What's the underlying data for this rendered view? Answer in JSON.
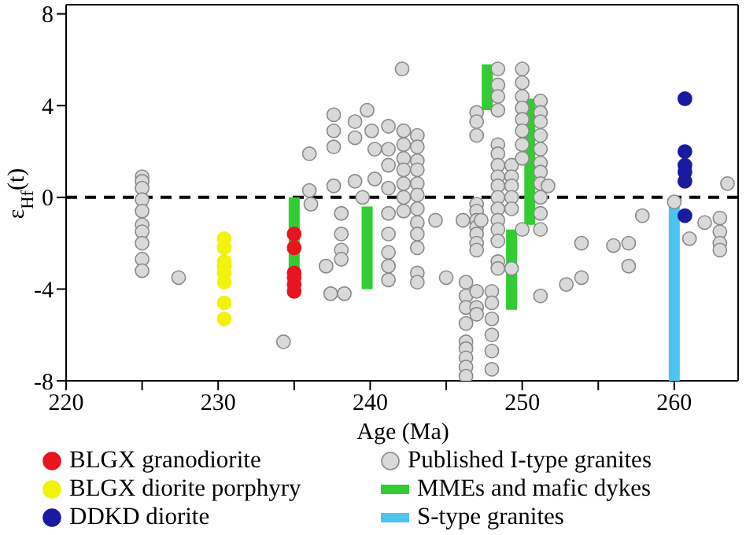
{
  "chart_data": {
    "type": "scatter",
    "xlabel": "Age (Ma)",
    "ylabel": "ε$_{Hf}$(t)",
    "xlim": [
      220,
      264.2
    ],
    "ylim": [
      -8,
      8.4
    ],
    "xticks": [
      220,
      {
        "value": 225,
        "label": null
      },
      230,
      {
        "value": 235,
        "label": null
      },
      240,
      {
        "value": 245,
        "label": null
      },
      250,
      {
        "value": 255,
        "label": null
      },
      260
    ],
    "yticks": [
      -8,
      -4,
      0,
      4,
      8
    ],
    "legend": "bottom",
    "marker": "circle",
    "ref_lines": [
      {
        "axis": "y",
        "value": 0,
        "color": "#000000",
        "line_style": "dashed"
      }
    ],
    "series": [
      {
        "name": "BLGX granodiorite",
        "color": "#e8141e",
        "x": [
          235,
          235,
          235,
          235,
          235,
          235
        ],
        "values": [
          -1.6,
          -2.2,
          -3.3,
          -3.5,
          -3.8,
          -4.1
        ]
      },
      {
        "name": "BLGX diorite porphyry",
        "color": "#f2f20a",
        "x": [
          230.4,
          230.4,
          230.4,
          230.4,
          230.4,
          230.4,
          230.4,
          230.4
        ],
        "values": [
          -1.8,
          -2.2,
          -2.8,
          -3.0,
          -3.3,
          -3.7,
          -4.6,
          -5.3
        ]
      },
      {
        "name": "DDKD diorite",
        "color": "#1a1aa0",
        "x": [
          260.7,
          260.7,
          260.7,
          260.7,
          260.7,
          260.7
        ],
        "values": [
          4.3,
          2.0,
          1.4,
          1.1,
          0.7,
          -0.8
        ]
      },
      {
        "name": "Published I-type granites",
        "color": "#d9d9d9",
        "x": [
          225,
          225,
          225,
          225,
          225,
          225,
          225,
          225,
          225,
          225,
          227.4,
          234.3,
          236.0,
          236.0,
          236.1,
          237.1,
          237.4,
          238.3,
          237.6,
          237.6,
          237.6,
          237.6,
          238.1,
          238.1,
          238.1,
          238.1,
          239.0,
          239.0,
          239.0,
          239.8,
          240.1,
          240.3,
          240.3,
          239.5,
          242.1,
          241.2,
          241.2,
          241.2,
          241.2,
          241.2,
          241.2,
          241.2,
          241.2,
          241.2,
          242.2,
          242.2,
          242.2,
          242.2,
          242.2,
          242.2,
          242.2,
          243.1,
          243.1,
          243.1,
          243.1,
          243.1,
          243.1,
          243.1,
          243.1,
          243.1,
          243.1,
          243.1,
          243.1,
          244.3,
          245.0,
          246.1,
          246.3,
          246.3,
          246.3,
          246.3,
          246.3,
          246.3,
          246.3,
          246.3,
          246.3,
          247.0,
          247.0,
          247.0,
          247.0,
          247.0,
          247.0,
          247.0,
          247.0,
          247.0,
          247.0,
          247.0,
          247.0,
          247.0,
          247.3,
          248.0,
          248.0,
          248.0,
          248.0,
          248.0,
          248.0,
          248.4,
          248.4,
          248.4,
          248.4,
          248.4,
          248.4,
          248.4,
          248.4,
          248.4,
          248.4,
          248.4,
          248.4,
          248.4,
          248.4,
          248.4,
          248.4,
          249.3,
          249.3,
          249.3,
          249.3,
          249.3,
          249.3,
          250.0,
          250.0,
          250.0,
          250.0,
          250.0,
          250.0,
          250.0,
          250.0,
          250.0,
          251.2,
          251.2,
          251.2,
          251.2,
          251.2,
          251.2,
          251.2,
          251.2,
          251.2,
          251.2,
          251.2,
          251.2,
          251.7,
          253.9,
          253.9,
          252.9,
          256.0,
          257.0,
          257.0,
          257.9,
          260.0,
          261.0,
          262.0,
          263.0,
          263.0,
          263.0,
          263.0,
          263.5
        ],
        "values": [
          0.9,
          0.7,
          0.4,
          -0.1,
          -0.6,
          -1.2,
          -1.5,
          -2.0,
          -2.7,
          -3.2,
          -3.5,
          -6.3,
          1.9,
          0.3,
          -0.3,
          -3.0,
          -4.2,
          -4.2,
          3.6,
          2.9,
          2.2,
          0.5,
          -0.7,
          -1.6,
          -2.3,
          -2.7,
          3.3,
          2.6,
          0.7,
          3.8,
          2.9,
          2.1,
          0.8,
          0,
          5.6,
          3.1,
          2.1,
          1.4,
          0.4,
          -0.7,
          -1.6,
          -2.4,
          -3.0,
          -3.6,
          2.9,
          2.3,
          1.7,
          1.2,
          0.6,
          0,
          -0.6,
          2.7,
          2.2,
          1.6,
          1.2,
          0.6,
          0.1,
          -0.5,
          -1.1,
          -1.6,
          -2.2,
          -3.3,
          -3.7,
          -1.0,
          -3.5,
          -1.0,
          -3.7,
          -4.3,
          -4.8,
          -5.5,
          -6.3,
          -6.6,
          -7.0,
          -7.4,
          -7.8,
          3.7,
          3.3,
          2.7,
          -0.3,
          -0.6,
          -1.0,
          -1.3,
          -1.6,
          -2.0,
          -2.3,
          -4.1,
          -4.8,
          -5.1,
          -1.0,
          -4.1,
          -4.6,
          -5.3,
          -6.0,
          -6.7,
          -7.5,
          5.6,
          4.9,
          4.4,
          3.8,
          2.3,
          1.9,
          1.4,
          0.9,
          0.5,
          0,
          -0.5,
          -1.0,
          -1.4,
          -1.9,
          -2.8,
          -3.1,
          1.4,
          0.9,
          0.5,
          0,
          -0.5,
          -3.1,
          5.6,
          5.0,
          4.4,
          3.9,
          3.4,
          2.9,
          2.3,
          1.7,
          -1.4,
          4.2,
          3.7,
          3.3,
          2.7,
          2.1,
          1.5,
          1.1,
          0.6,
          0,
          -0.7,
          -1.4,
          -4.3,
          0.5,
          -2.0,
          -3.5,
          -3.8,
          -2.1,
          -2.0,
          -3.0,
          -0.8,
          -0.2,
          -1.8,
          -1.1,
          -0.9,
          -1.5,
          -2.0,
          -2.3,
          0.6
        ]
      },
      {
        "name": "MMEs and mafic dykes",
        "type": "line",
        "marker": "none",
        "color": "#33cc33",
        "x": [
          235,
          235
        ],
        "values": [
          0,
          -4.3
        ]
      },
      {
        "type": "line",
        "marker": "none",
        "color": "#33cc33",
        "x": [
          239.8,
          239.8
        ],
        "values": [
          -0.4,
          -4.0
        ]
      },
      {
        "type": "line",
        "marker": "none",
        "color": "#33cc33",
        "x": [
          247.7,
          247.7
        ],
        "values": [
          5.8,
          3.8
        ]
      },
      {
        "type": "line",
        "marker": "none",
        "color": "#33cc33",
        "x": [
          249.3,
          249.3
        ],
        "values": [
          -1.4,
          -4.9
        ]
      },
      {
        "type": "line",
        "marker": "none",
        "color": "#33cc33",
        "x": [
          250.5,
          250.5
        ],
        "values": [
          4.3,
          -1.2
        ]
      },
      {
        "name": "S-type granites",
        "type": "line",
        "marker": "none",
        "color": "#4dc3f0",
        "x": [
          260,
          260
        ],
        "values": [
          -0.4,
          -8
        ]
      }
    ]
  }
}
